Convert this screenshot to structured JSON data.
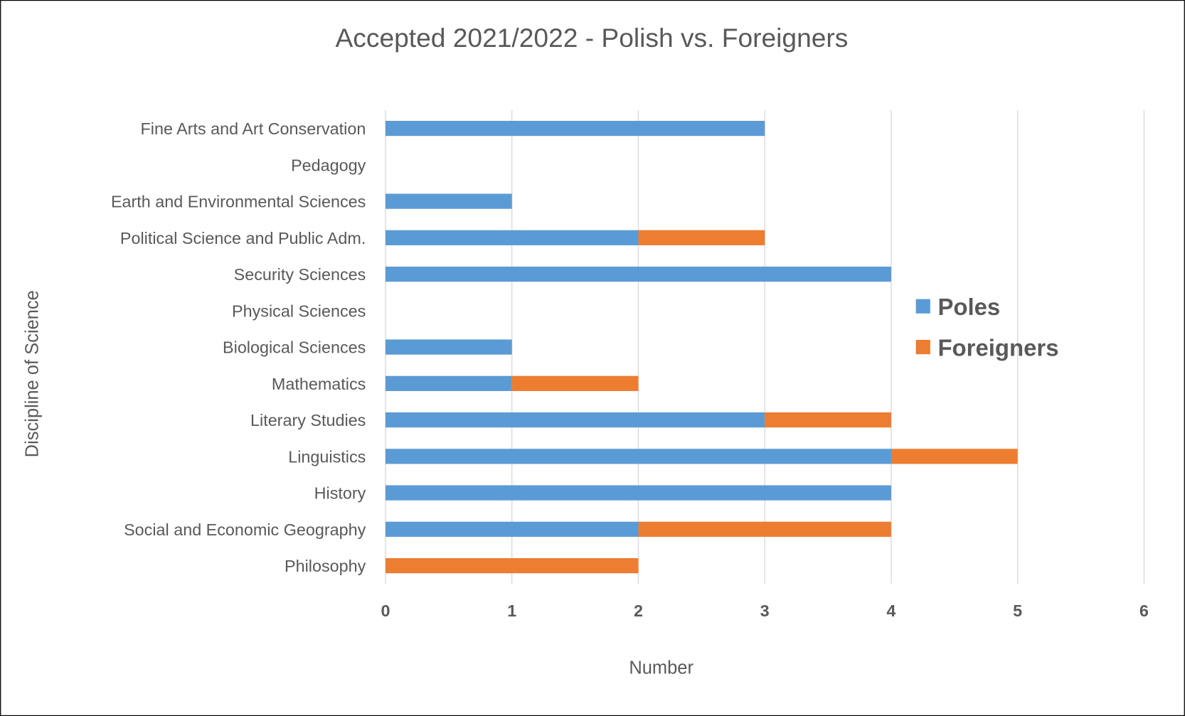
{
  "chart_data": {
    "type": "bar",
    "orientation": "horizontal",
    "stacked": true,
    "title": "Accepted 2021/2022 - Polish vs. Foreigners",
    "xlabel": "Number",
    "ylabel": "Discipline of Science",
    "xlim": [
      0,
      6
    ],
    "xticks": [
      "0",
      "1",
      "2",
      "3",
      "4",
      "5",
      "6"
    ],
    "grid": "vertical",
    "legend_position": "right",
    "categories": [
      "Fine Arts and Art Conservation",
      "Pedagogy",
      "Earth and Environmental Sciences",
      "Political Science and Public Adm.",
      "Security Sciences",
      "Physical Sciences",
      "Biological Sciences",
      "Mathematics",
      "Literary Studies",
      "Linguistics",
      "History",
      "Social and Economic Geography",
      "Philosophy"
    ],
    "series": [
      {
        "name": "Poles",
        "color": "#5B9BD5",
        "values": [
          3,
          0,
          1,
          2,
          4,
          0,
          1,
          1,
          3,
          4,
          4,
          2,
          0
        ]
      },
      {
        "name": "Foreigners",
        "color": "#ED7D31",
        "values": [
          0,
          0,
          0,
          1,
          0,
          0,
          0,
          1,
          1,
          1,
          0,
          2,
          2
        ]
      }
    ]
  }
}
